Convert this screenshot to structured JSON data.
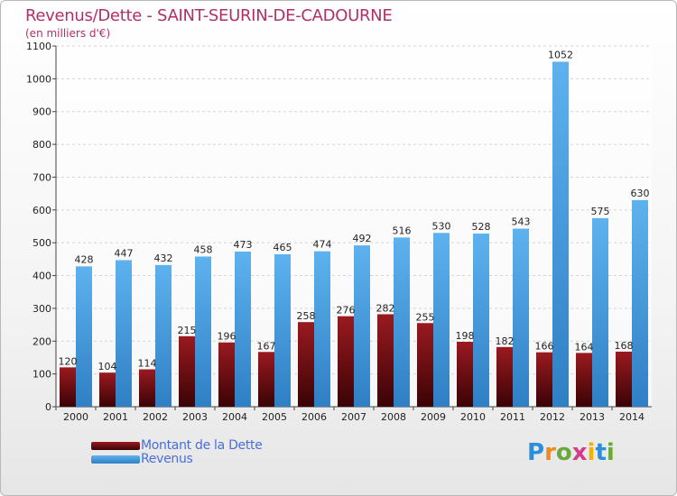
{
  "chart_data": {
    "type": "bar",
    "title": "Revenus/Dette - SAINT-SEURIN-DE-CADOURNE",
    "subtitle": "(en milliers d'€)",
    "categories": [
      "2000",
      "2001",
      "2002",
      "2003",
      "2004",
      "2005",
      "2006",
      "2007",
      "2008",
      "2009",
      "2010",
      "2011",
      "2012",
      "2013",
      "2014"
    ],
    "series": [
      {
        "name": "Montant de la Dette",
        "values": [
          120,
          104,
          114,
          215,
          196,
          167,
          258,
          276,
          282,
          255,
          198,
          182,
          166,
          164,
          168
        ],
        "color": "#7a0f14"
      },
      {
        "name": "Revenus",
        "values": [
          428,
          447,
          432,
          458,
          473,
          465,
          474,
          492,
          516,
          530,
          528,
          543,
          1052,
          575,
          630
        ],
        "color": "#4aa0e0"
      }
    ],
    "yticks": [
      0,
      100,
      200,
      300,
      400,
      500,
      600,
      700,
      800,
      900,
      1000,
      1100
    ],
    "ylim": [
      0,
      1100
    ],
    "xlabel": "",
    "ylabel": "",
    "grid": true,
    "legend_position": "bottom-left"
  },
  "logo": {
    "letters": [
      "P",
      "r",
      "o",
      "x",
      "i",
      "t",
      "i"
    ],
    "colors": [
      "#2e8fd8",
      "#f08a1c",
      "#6aa83a",
      "#d63a8a",
      "#f0b400",
      "#2e8fd8",
      "#6aa83a"
    ]
  }
}
